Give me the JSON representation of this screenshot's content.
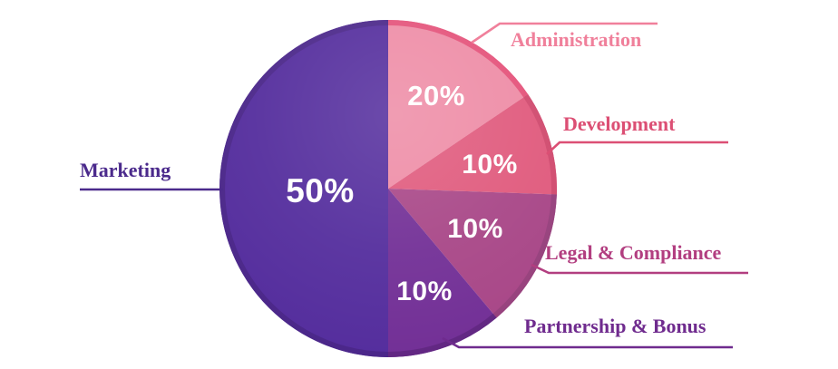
{
  "chart_data": {
    "type": "pie",
    "title": "",
    "unit": "%",
    "direction": "clockwise",
    "start_angle_deg": 0,
    "legend_position": "external-callouts",
    "values_shown_inside": true,
    "background_color": "#ffffff",
    "value_text_color": "#ffffff",
    "slices": [
      {
        "label": "Administration",
        "value": 20,
        "display": "20%",
        "color": "#ee8ca6",
        "rim_color": "#e4527a",
        "line_color": "#f0809b",
        "label_color": "#f0809b",
        "drawn_start_deg": 0,
        "drawn_end_deg": 56
      },
      {
        "label": "Development",
        "value": 10,
        "display": "10%",
        "color": "#e05a7d",
        "rim_color": "#d04a6e",
        "line_color": "#dc4f74",
        "label_color": "#dc4f74",
        "drawn_start_deg": 56,
        "drawn_end_deg": 92
      },
      {
        "label": "Legal & Compliance",
        "value": 10,
        "display": "10%",
        "color": "#a84687",
        "rim_color": "#96407c",
        "line_color": "#b23e80",
        "label_color": "#b23e80",
        "drawn_start_deg": 92,
        "drawn_end_deg": 140
      },
      {
        "label": "Partnership & Bonus",
        "value": 10,
        "display": "10%",
        "color": "#722f96",
        "rim_color": "#612682",
        "line_color": "#6f2b8e",
        "label_color": "#6f2b8e",
        "drawn_start_deg": 140,
        "drawn_end_deg": 180
      },
      {
        "label": "Marketing",
        "value": 50,
        "display": "50%",
        "color": "#542d9d",
        "rim_color": "#4a2689",
        "line_color": "#4b2a8c",
        "label_color": "#4b2a8c",
        "drawn_start_deg": 180,
        "drawn_end_deg": 360
      }
    ]
  }
}
